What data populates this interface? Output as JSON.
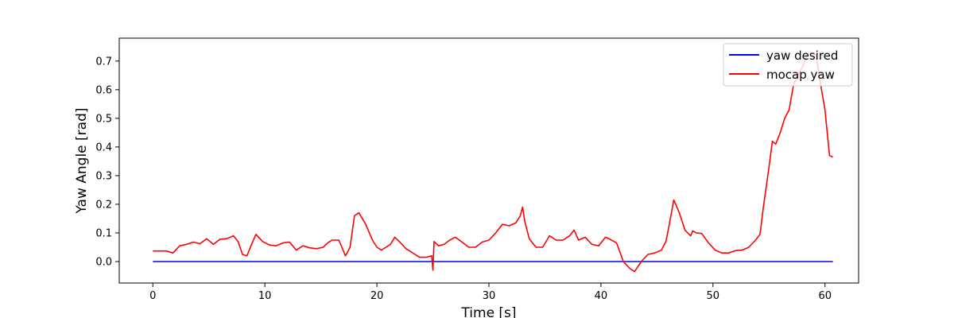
{
  "chart_data": {
    "type": "line",
    "xlabel": "Time [s]",
    "ylabel": "Yaw Angle [rad]",
    "xlim": [
      -3,
      63
    ],
    "ylim": [
      -0.075,
      0.78
    ],
    "xticks": [
      0,
      10,
      20,
      30,
      40,
      50,
      60
    ],
    "yticks": [
      0.0,
      0.1,
      0.2,
      0.3,
      0.4,
      0.5,
      0.6,
      0.7
    ],
    "ytick_labels": [
      "0.0",
      "0.1",
      "0.2",
      "0.3",
      "0.4",
      "0.5",
      "0.6",
      "0.7"
    ],
    "legend_position": "top-right",
    "grid": false,
    "series": [
      {
        "name": "yaw desired",
        "color": "#0000ff",
        "x": [
          0,
          60.7
        ],
        "y": [
          0.0,
          0.0
        ]
      },
      {
        "name": "mocap yaw",
        "color": "#ff0000",
        "x": [
          0,
          1.2,
          1.8,
          2.4,
          3.0,
          3.6,
          4.2,
          4.8,
          5.4,
          6.0,
          6.6,
          7.2,
          7.6,
          8.0,
          8.4,
          8.7,
          9.2,
          9.8,
          10.4,
          11.0,
          11.6,
          12.2,
          12.8,
          13.4,
          14.0,
          14.6,
          15.2,
          15.6,
          16.0,
          16.6,
          17.2,
          17.6,
          18.0,
          18.4,
          19.0,
          19.6,
          20.0,
          20.4,
          20.8,
          21.2,
          21.6,
          22.0,
          22.6,
          23.2,
          23.8,
          24.4,
          24.9,
          25.0,
          25.1,
          25.5,
          26.0,
          26.5,
          27.0,
          27.6,
          28.2,
          28.8,
          29.4,
          30.0,
          30.6,
          31.2,
          31.8,
          32.4,
          32.8,
          33.0,
          33.2,
          33.6,
          34.2,
          34.8,
          35.4,
          36.0,
          36.6,
          37.2,
          37.6,
          38.0,
          38.6,
          39.2,
          39.8,
          40.4,
          40.8,
          41.4,
          42.0,
          42.6,
          43.0,
          43.6,
          44.2,
          44.8,
          45.4,
          45.8,
          46.1,
          46.5,
          47.0,
          47.5,
          48.0,
          48.2,
          48.5,
          49.0,
          49.6,
          50.2,
          50.8,
          51.4,
          52.0,
          52.6,
          53.2,
          53.8,
          54.2,
          54.5,
          55.0,
          55.3,
          55.6,
          56.0,
          56.4,
          56.8,
          57.2,
          57.6,
          58.0,
          58.4,
          58.8,
          59.2,
          59.6,
          60.0,
          60.4,
          60.7
        ],
        "y": [
          0.037,
          0.037,
          0.03,
          0.055,
          0.06,
          0.068,
          0.062,
          0.08,
          0.06,
          0.078,
          0.08,
          0.09,
          0.07,
          0.025,
          0.02,
          0.05,
          0.095,
          0.07,
          0.058,
          0.055,
          0.065,
          0.068,
          0.04,
          0.055,
          0.048,
          0.045,
          0.05,
          0.065,
          0.075,
          0.075,
          0.02,
          0.05,
          0.16,
          0.17,
          0.13,
          0.075,
          0.05,
          0.04,
          0.05,
          0.06,
          0.085,
          0.07,
          0.045,
          0.03,
          0.015,
          0.015,
          0.02,
          -0.03,
          0.07,
          0.055,
          0.06,
          0.075,
          0.085,
          0.068,
          0.05,
          0.05,
          0.068,
          0.075,
          0.1,
          0.13,
          0.125,
          0.135,
          0.16,
          0.19,
          0.14,
          0.08,
          0.05,
          0.05,
          0.09,
          0.075,
          0.075,
          0.09,
          0.11,
          0.075,
          0.085,
          0.06,
          0.055,
          0.085,
          0.078,
          0.065,
          0.0,
          -0.025,
          -0.035,
          0.0,
          0.025,
          0.03,
          0.04,
          0.07,
          0.13,
          0.215,
          0.17,
          0.11,
          0.09,
          0.107,
          0.1,
          0.098,
          0.065,
          0.04,
          0.03,
          0.03,
          0.038,
          0.04,
          0.05,
          0.075,
          0.095,
          0.19,
          0.33,
          0.42,
          0.41,
          0.45,
          0.5,
          0.53,
          0.62,
          0.65,
          0.68,
          0.72,
          0.73,
          0.72,
          0.62,
          0.53,
          0.37,
          0.365
        ]
      }
    ]
  }
}
